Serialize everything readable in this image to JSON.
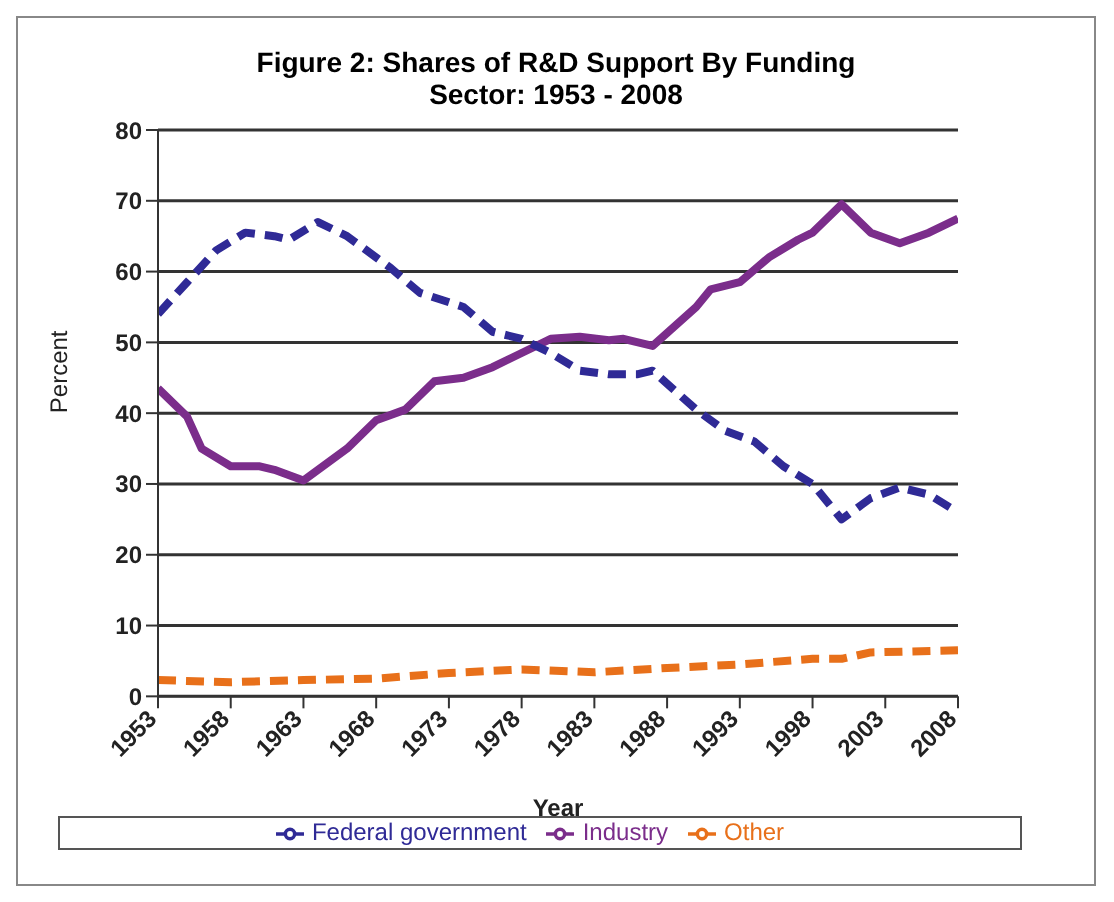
{
  "chart_data": {
    "type": "line",
    "title": "Figure 2: Shares of R&D Support By Funding Sector: 1953 - 2008",
    "xlabel": "Year",
    "ylabel": "Percent",
    "xlim": [
      1953,
      2008
    ],
    "xticks": [
      1953,
      1958,
      1963,
      1968,
      1973,
      1978,
      1983,
      1988,
      1993,
      1998,
      2003,
      2008
    ],
    "ylim": [
      0,
      80
    ],
    "yticks": [
      0,
      10,
      20,
      30,
      40,
      50,
      60,
      70,
      80
    ],
    "grid": "y",
    "legend": "bottom",
    "series": [
      {
        "name": "Industry",
        "color": "#7b2d8b",
        "line_style": "solid",
        "x": [
          1953,
          1955,
          1956,
          1958,
          1960,
          1961,
          1963,
          1966,
          1968,
          1970,
          1972,
          1974,
          1976,
          1978,
          1980,
          1982,
          1984,
          1985,
          1987,
          1990,
          1991,
          1993,
          1995,
          1997,
          1998,
          2000,
          2002,
          2004,
          2006,
          2008
        ],
        "values": [
          43.5,
          39.5,
          35,
          32.5,
          32.5,
          32,
          30.5,
          35,
          39,
          40.5,
          44.5,
          45,
          46.5,
          48.5,
          50.5,
          50.8,
          50.3,
          50.5,
          49.5,
          55,
          57.5,
          58.5,
          62,
          64.5,
          65.5,
          69.5,
          65.5,
          64,
          65.5,
          67.5
        ]
      },
      {
        "name": "Federal government",
        "color": "#2f2a96",
        "line_style": "dashed",
        "x": [
          1953,
          1955,
          1957,
          1959,
          1961,
          1962,
          1964,
          1966,
          1969,
          1971,
          1974,
          1976,
          1978,
          1980,
          1982,
          1984,
          1986,
          1987,
          1990,
          1992,
          1994,
          1996,
          1998,
          2000,
          2002,
          2004,
          2006,
          2008
        ],
        "values": [
          54,
          58.5,
          63,
          65.5,
          65,
          64.5,
          67,
          65,
          60.5,
          57,
          55,
          51.5,
          50.5,
          48.5,
          46,
          45.5,
          45.5,
          46,
          40.5,
          37.5,
          36,
          32.5,
          30,
          25,
          28,
          29.5,
          28.5,
          26
        ]
      },
      {
        "name": "Other",
        "color": "#e8701a",
        "line_style": "dashed",
        "x": [
          1953,
          1958,
          1963,
          1968,
          1973,
          1978,
          1983,
          1988,
          1993,
          1998,
          2000,
          2002,
          2008
        ],
        "values": [
          2.3,
          2,
          2.3,
          2.5,
          3.3,
          3.8,
          3.4,
          4,
          4.5,
          5.3,
          5.3,
          6.2,
          6.5
        ]
      }
    ]
  }
}
